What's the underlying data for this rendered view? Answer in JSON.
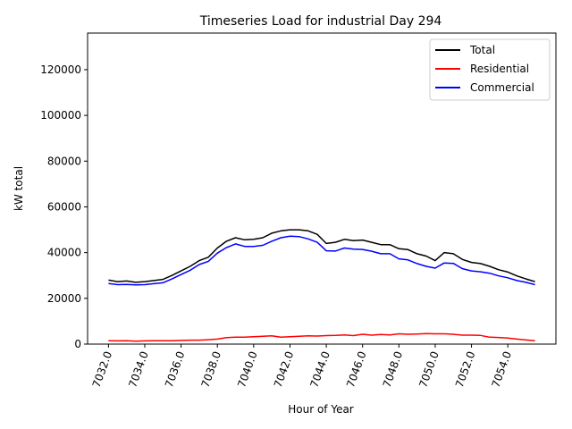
{
  "chart_data": {
    "type": "line",
    "title": "Timeseries Load for industrial   Day 294",
    "xlabel": "Hour of Year",
    "ylabel": "kW total",
    "xlim": [
      7030.85,
      7056.65
    ],
    "ylim": [
      0,
      136000
    ],
    "xticks": [
      7032,
      7034,
      7036,
      7038,
      7040,
      7042,
      7044,
      7046,
      7048,
      7050,
      7052,
      7054
    ],
    "xtick_labels": [
      "7032.0",
      "7034.0",
      "7036.0",
      "7038.0",
      "7040.0",
      "7042.0",
      "7044.0",
      "7046.0",
      "7048.0",
      "7050.0",
      "7052.0",
      "7054.0"
    ],
    "yticks": [
      0,
      20000,
      40000,
      60000,
      80000,
      100000,
      120000
    ],
    "ytick_labels": [
      "0",
      "20000",
      "40000",
      "60000",
      "80000",
      "100000",
      "120000"
    ],
    "grid": false,
    "legend_position": "top-right",
    "x": [
      7032.0,
      7032.5,
      7033.0,
      7033.5,
      7034.0,
      7034.5,
      7035.0,
      7035.5,
      7036.0,
      7036.5,
      7037.0,
      7037.5,
      7038.0,
      7038.5,
      7039.0,
      7039.5,
      7040.0,
      7040.5,
      7041.0,
      7041.5,
      7042.0,
      7042.5,
      7043.0,
      7043.5,
      7044.0,
      7044.5,
      7045.0,
      7045.5,
      7046.0,
      7046.5,
      7047.0,
      7047.5,
      7048.0,
      7048.5,
      7049.0,
      7049.5,
      7050.0,
      7050.5,
      7051.0,
      7051.5,
      7052.0,
      7052.5,
      7053.0,
      7053.5,
      7054.0,
      7054.5,
      7055.0,
      7055.5
    ],
    "series": [
      {
        "name": "Total",
        "color": "#000000",
        "values": [
          28000,
          27300,
          27600,
          27000,
          27300,
          27800,
          28300,
          30000,
          32000,
          34000,
          36500,
          38000,
          42000,
          45000,
          46500,
          45600,
          45800,
          46500,
          48500,
          49500,
          50000,
          50000,
          49500,
          48000,
          44000,
          44500,
          45800,
          45200,
          45500,
          44500,
          43500,
          43500,
          41700,
          41300,
          39500,
          38500,
          36500,
          40000,
          39500,
          37000,
          35700,
          35200,
          34000,
          32500,
          31500,
          29800,
          28500,
          27300
        ]
      },
      {
        "name": "Residential",
        "color": "#ff0000",
        "values": [
          1500,
          1400,
          1500,
          1300,
          1400,
          1500,
          1500,
          1500,
          1600,
          1700,
          1700,
          1900,
          2200,
          2800,
          3000,
          3000,
          3200,
          3400,
          3600,
          3000,
          3200,
          3400,
          3600,
          3500,
          3700,
          3800,
          4000,
          3700,
          4300,
          3900,
          4200,
          4000,
          4500,
          4300,
          4400,
          4600,
          4500,
          4500,
          4300,
          3900,
          3900,
          3800,
          3000,
          2900,
          2600,
          2200,
          1800,
          1500
        ]
      },
      {
        "name": "Commercial",
        "color": "#0000ff",
        "values": [
          26500,
          26000,
          26100,
          25900,
          26000,
          26400,
          26800,
          28500,
          30400,
          32300,
          34800,
          36200,
          39800,
          42200,
          43800,
          42700,
          42700,
          43200,
          45000,
          46500,
          47200,
          47000,
          46000,
          44500,
          40800,
          40700,
          42000,
          41500,
          41400,
          40600,
          39500,
          39500,
          37300,
          36800,
          35200,
          34000,
          33200,
          35500,
          35300,
          33000,
          32000,
          31600,
          31000,
          29800,
          29000,
          27800,
          27000,
          26000
        ]
      }
    ]
  }
}
